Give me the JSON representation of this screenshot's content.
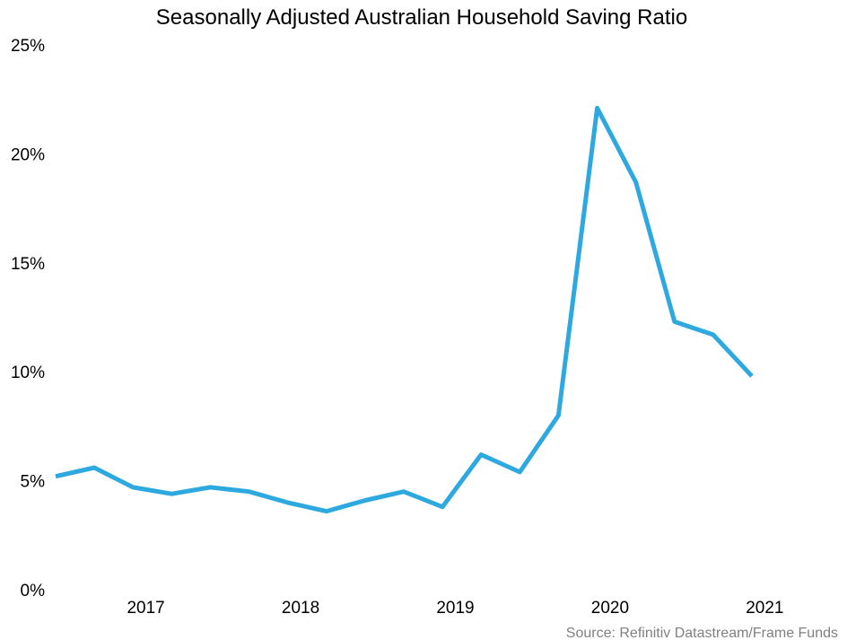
{
  "chart_data": {
    "type": "line",
    "title": "Seasonally Adjusted Australian Household Saving Ratio",
    "xlabel": "",
    "ylabel": "",
    "source": "Source: Refinitiv Datastream/Frame Funds",
    "x": [
      "2016-06",
      "2016-09",
      "2016-12",
      "2017-03",
      "2017-06",
      "2017-09",
      "2017-12",
      "2018-03",
      "2018-06",
      "2018-09",
      "2018-12",
      "2019-03",
      "2019-06",
      "2019-09",
      "2019-12",
      "2020-03",
      "2020-06",
      "2020-09",
      "2020-12"
    ],
    "series": [
      {
        "values": [
          5.2,
          5.6,
          4.7,
          4.4,
          4.7,
          4.5,
          4.0,
          3.6,
          4.1,
          4.5,
          3.8,
          6.2,
          5.4,
          8.0,
          22.1,
          18.7,
          12.3,
          11.7,
          9.8
        ],
        "color": "#2EA9DF"
      }
    ],
    "xticks": [
      {
        "label": "2017",
        "x": "2017-01"
      },
      {
        "label": "2018",
        "x": "2018-01"
      },
      {
        "label": "2019",
        "x": "2019-01"
      },
      {
        "label": "2020",
        "x": "2020-01"
      },
      {
        "label": "2021",
        "x": "2021-01"
      }
    ],
    "yticks": [
      0,
      5,
      10,
      15,
      20,
      25
    ],
    "ytick_labels": [
      "0%",
      "5%",
      "10%",
      "15%",
      "20%",
      "25%"
    ],
    "ylim": [
      0,
      25
    ],
    "xlim": [
      "2016-06",
      "2021-03"
    ],
    "grid": false,
    "legend": "none"
  }
}
